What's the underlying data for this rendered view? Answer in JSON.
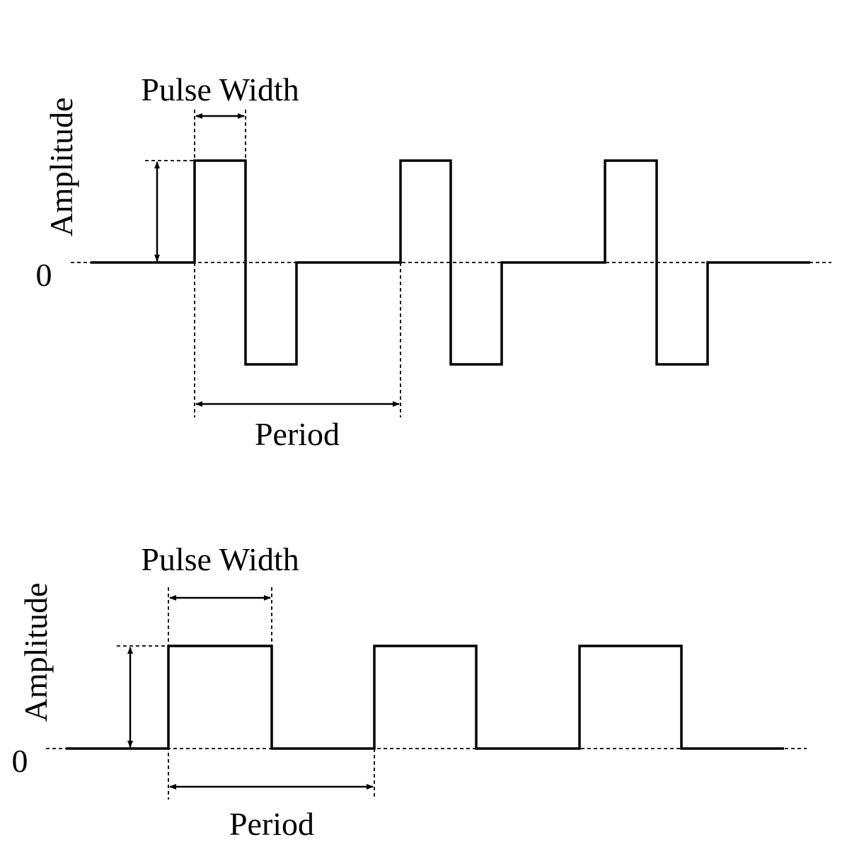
{
  "diagrams": [
    {
      "kind": "bipolar",
      "labels": {
        "pulse_width": "Pulse Width",
        "amplitude": "Amplitude",
        "zero": "0",
        "period": "Period"
      }
    },
    {
      "kind": "unipolar",
      "labels": {
        "pulse_width": "Pulse Width",
        "amplitude": "Amplitude",
        "zero": "0",
        "period": "Period"
      }
    }
  ],
  "colors": {
    "line": "#000000",
    "background": "#ffffff"
  }
}
